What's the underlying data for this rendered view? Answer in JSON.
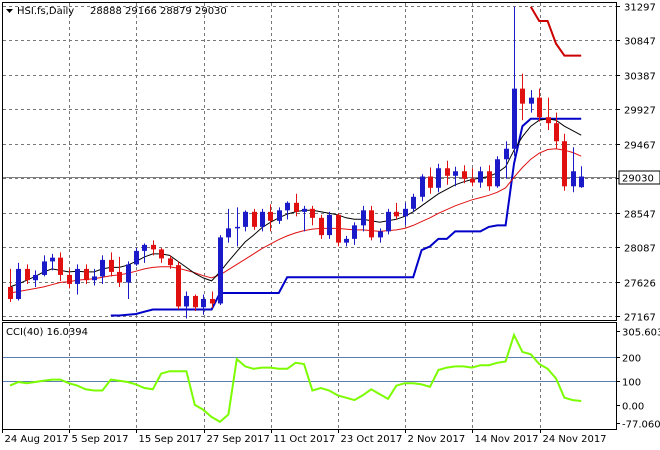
{
  "header": {
    "symbol": "HSI.fs,Daily",
    "ohlc": "28888 29166 28879 29030"
  },
  "colors": {
    "bull": "#1a1ac8",
    "bear": "#e01010",
    "ma_fast": "#000000",
    "ma_slow": "#e01010",
    "trail": "#0000c8",
    "trail_top": "#cc0000",
    "cci": "#7cfc00",
    "grid": "#777777"
  },
  "chart_data": [
    {
      "type": "candlestick",
      "title": "HSI.fs,Daily",
      "ylim": [
        27120,
        31340
      ],
      "y_ticks": [
        27167,
        27626,
        28087,
        28547,
        29007,
        29467,
        29927,
        30387,
        30847,
        31297
      ],
      "y_tick_labels": [
        "27167",
        "27626",
        "28087",
        "28547",
        "29007",
        "29467",
        "29927",
        "30387",
        "30847",
        "31297"
      ],
      "current_price": 29030,
      "current_price_label": "29030",
      "x_labels": [
        "24 Aug 2017",
        "5 Sep 2017",
        "15 Sep 2017",
        "27 Sep 2017",
        "11 Oct 2017",
        "23 Oct 2017",
        "2 Nov 2017",
        "14 Nov 2017",
        "24 Nov 2017"
      ],
      "x_label_index": [
        0,
        8,
        16,
        24,
        32,
        40,
        48,
        56,
        64
      ],
      "candles": [
        [
          27560,
          27800,
          27360,
          27400
        ],
        [
          27400,
          27880,
          27380,
          27800
        ],
        [
          27800,
          27860,
          27600,
          27650
        ],
        [
          27650,
          27780,
          27560,
          27720
        ],
        [
          27720,
          27980,
          27700,
          27900
        ],
        [
          27900,
          28000,
          27780,
          27950
        ],
        [
          27950,
          28020,
          27640,
          27720
        ],
        [
          27720,
          27800,
          27540,
          27600
        ],
        [
          27600,
          27860,
          27460,
          27800
        ],
        [
          27800,
          27860,
          27600,
          27650
        ],
        [
          27650,
          27800,
          27580,
          27700
        ],
        [
          27700,
          27980,
          27600,
          27920
        ],
        [
          27920,
          28020,
          27700,
          27760
        ],
        [
          27760,
          27960,
          27560,
          27620
        ],
        [
          27620,
          27900,
          27400,
          27860
        ],
        [
          27860,
          28080,
          27840,
          28040
        ],
        [
          28040,
          28140,
          27880,
          28120
        ],
        [
          28120,
          28180,
          27980,
          28060
        ],
        [
          28060,
          28080,
          27880,
          27940
        ],
        [
          27940,
          27980,
          27800,
          27850
        ],
        [
          27850,
          27900,
          27260,
          27300
        ],
        [
          27300,
          27500,
          27140,
          27440
        ],
        [
          27440,
          27460,
          27240,
          27290
        ],
        [
          27290,
          27460,
          27190,
          27400
        ],
        [
          27400,
          27500,
          27280,
          27340
        ],
        [
          27340,
          28250,
          27320,
          28220
        ],
        [
          28220,
          28600,
          28150,
          28340
        ],
        [
          28340,
          28620,
          28100,
          28360
        ],
        [
          28360,
          28580,
          28300,
          28560
        ],
        [
          28560,
          28600,
          28320,
          28360
        ],
        [
          28360,
          28600,
          28300,
          28560
        ],
        [
          28560,
          28660,
          28300,
          28440
        ],
        [
          28440,
          28620,
          28400,
          28580
        ],
        [
          28580,
          28700,
          28460,
          28680
        ],
        [
          28680,
          28800,
          28500,
          28560
        ],
        [
          28560,
          28640,
          28300,
          28600
        ],
        [
          28600,
          28640,
          28380,
          28480
        ],
        [
          28480,
          28520,
          28200,
          28250
        ],
        [
          28250,
          28560,
          28200,
          28520
        ],
        [
          28520,
          28540,
          28100,
          28150
        ],
        [
          28150,
          28240,
          28100,
          28200
        ],
        [
          28200,
          28420,
          28120,
          28380
        ],
        [
          28380,
          28640,
          28300,
          28580
        ],
        [
          28580,
          28640,
          28180,
          28220
        ],
        [
          28220,
          28340,
          28150,
          28300
        ],
        [
          28300,
          28600,
          28260,
          28560
        ],
        [
          28560,
          28680,
          28460,
          28500
        ],
        [
          28500,
          28680,
          28380,
          28600
        ],
        [
          28600,
          28800,
          28560,
          28760
        ],
        [
          28760,
          29060,
          28700,
          29030
        ],
        [
          29030,
          29150,
          28800,
          28880
        ],
        [
          28880,
          29200,
          28820,
          29140
        ],
        [
          29140,
          29240,
          28920,
          29040
        ],
        [
          29040,
          29160,
          28900,
          29100
        ],
        [
          29100,
          29180,
          28940,
          29000
        ],
        [
          29000,
          29140,
          28900,
          28950
        ],
        [
          28950,
          29160,
          28880,
          29100
        ],
        [
          29100,
          29180,
          28840,
          28900
        ],
        [
          28900,
          29300,
          28880,
          29260
        ],
        [
          29260,
          29500,
          29000,
          29400
        ],
        [
          29400,
          31290,
          29300,
          30200
        ],
        [
          30200,
          30400,
          29780,
          30000
        ],
        [
          30000,
          30180,
          29880,
          30080
        ],
        [
          30080,
          30200,
          29760,
          29820
        ],
        [
          29820,
          30080,
          29650,
          29740
        ],
        [
          29740,
          29880,
          29400,
          29500
        ],
        [
          29500,
          29600,
          28840,
          28900
        ],
        [
          28900,
          29420,
          28820,
          29100
        ],
        [
          28888,
          29166,
          28879,
          29030
        ]
      ],
      "ma_fast": [
        27560,
        27600,
        27650,
        27700,
        27760,
        27800,
        27780,
        27760,
        27770,
        27760,
        27760,
        27800,
        27820,
        27820,
        27850,
        27900,
        27960,
        28000,
        28000,
        27980,
        27900,
        27820,
        27740,
        27680,
        27640,
        27760,
        27900,
        28030,
        28160,
        28250,
        28350,
        28420,
        28480,
        28530,
        28560,
        28580,
        28580,
        28560,
        28540,
        28520,
        28480,
        28460,
        28460,
        28440,
        28420,
        28440,
        28460,
        28500,
        28560,
        28640,
        28720,
        28800,
        28860,
        28920,
        28960,
        28990,
        29010,
        29030,
        29080,
        29160,
        29380,
        29560,
        29700,
        29780,
        29800,
        29780,
        29700,
        29640,
        29580
      ],
      "ma_slow": [
        27480,
        27500,
        27520,
        27540,
        27560,
        27590,
        27620,
        27630,
        27650,
        27660,
        27670,
        27690,
        27710,
        27720,
        27740,
        27770,
        27800,
        27820,
        27830,
        27830,
        27810,
        27780,
        27750,
        27710,
        27680,
        27720,
        27790,
        27860,
        27930,
        28000,
        28070,
        28130,
        28190,
        28240,
        28280,
        28310,
        28330,
        28340,
        28340,
        28340,
        28330,
        28320,
        28320,
        28310,
        28300,
        28310,
        28320,
        28340,
        28380,
        28430,
        28480,
        28540,
        28590,
        28640,
        28680,
        28720,
        28750,
        28780,
        28820,
        28880,
        29020,
        29150,
        29260,
        29340,
        29390,
        29400,
        29380,
        29350,
        29300
      ],
      "trail": [
        null,
        null,
        null,
        null,
        null,
        null,
        null,
        null,
        null,
        null,
        null,
        null,
        27180,
        27180,
        27190,
        27200,
        27230,
        27260,
        27260,
        27260,
        27260,
        27260,
        27260,
        27260,
        27260,
        27480,
        27480,
        27480,
        27480,
        27480,
        27480,
        27480,
        27480,
        27690,
        27690,
        27690,
        27690,
        27690,
        27690,
        27690,
        27690,
        27690,
        27690,
        27690,
        27690,
        27690,
        27690,
        27690,
        27690,
        28050,
        28100,
        28200,
        28200,
        28300,
        28300,
        28300,
        28300,
        28360,
        28380,
        28380,
        29200,
        29700,
        29800,
        29800,
        29800,
        29800,
        29800,
        29800,
        29800
      ],
      "trail_top": [
        null,
        null,
        null,
        null,
        null,
        null,
        null,
        null,
        null,
        null,
        null,
        null,
        null,
        null,
        null,
        null,
        null,
        null,
        null,
        null,
        null,
        null,
        null,
        null,
        null,
        null,
        null,
        null,
        null,
        null,
        null,
        null,
        null,
        null,
        null,
        null,
        null,
        null,
        null,
        null,
        null,
        null,
        null,
        null,
        null,
        null,
        null,
        null,
        null,
        null,
        null,
        null,
        null,
        null,
        null,
        null,
        null,
        null,
        null,
        null,
        null,
        null,
        31290,
        31100,
        31100,
        30800,
        30640,
        30640,
        30640
      ]
    },
    {
      "type": "line",
      "title": "CCI(40) 16.0394",
      "ylim": [
        -100,
        340
      ],
      "y_ticks": [
        305.6036,
        200,
        100,
        0,
        -77.0604
      ],
      "y_tick_labels": [
        "305.6036",
        "200",
        "100",
        "0.00",
        "-77.0604"
      ],
      "levels": [
        200,
        100
      ],
      "series": [
        {
          "values": [
            80,
            95,
            90,
            95,
            100,
            105,
            105,
            90,
            80,
            65,
            60,
            60,
            105,
            100,
            95,
            85,
            70,
            65,
            130,
            140,
            140,
            140,
            0,
            -20,
            -50,
            -70,
            -40,
            190,
            160,
            150,
            155,
            155,
            150,
            150,
            175,
            170,
            60,
            70,
            60,
            40,
            30,
            20,
            40,
            65,
            45,
            25,
            80,
            90,
            90,
            85,
            75,
            145,
            155,
            160,
            160,
            155,
            165,
            165,
            175,
            180,
            290,
            220,
            210,
            170,
            150,
            110,
            30,
            20,
            16.0394
          ]
        }
      ]
    }
  ]
}
